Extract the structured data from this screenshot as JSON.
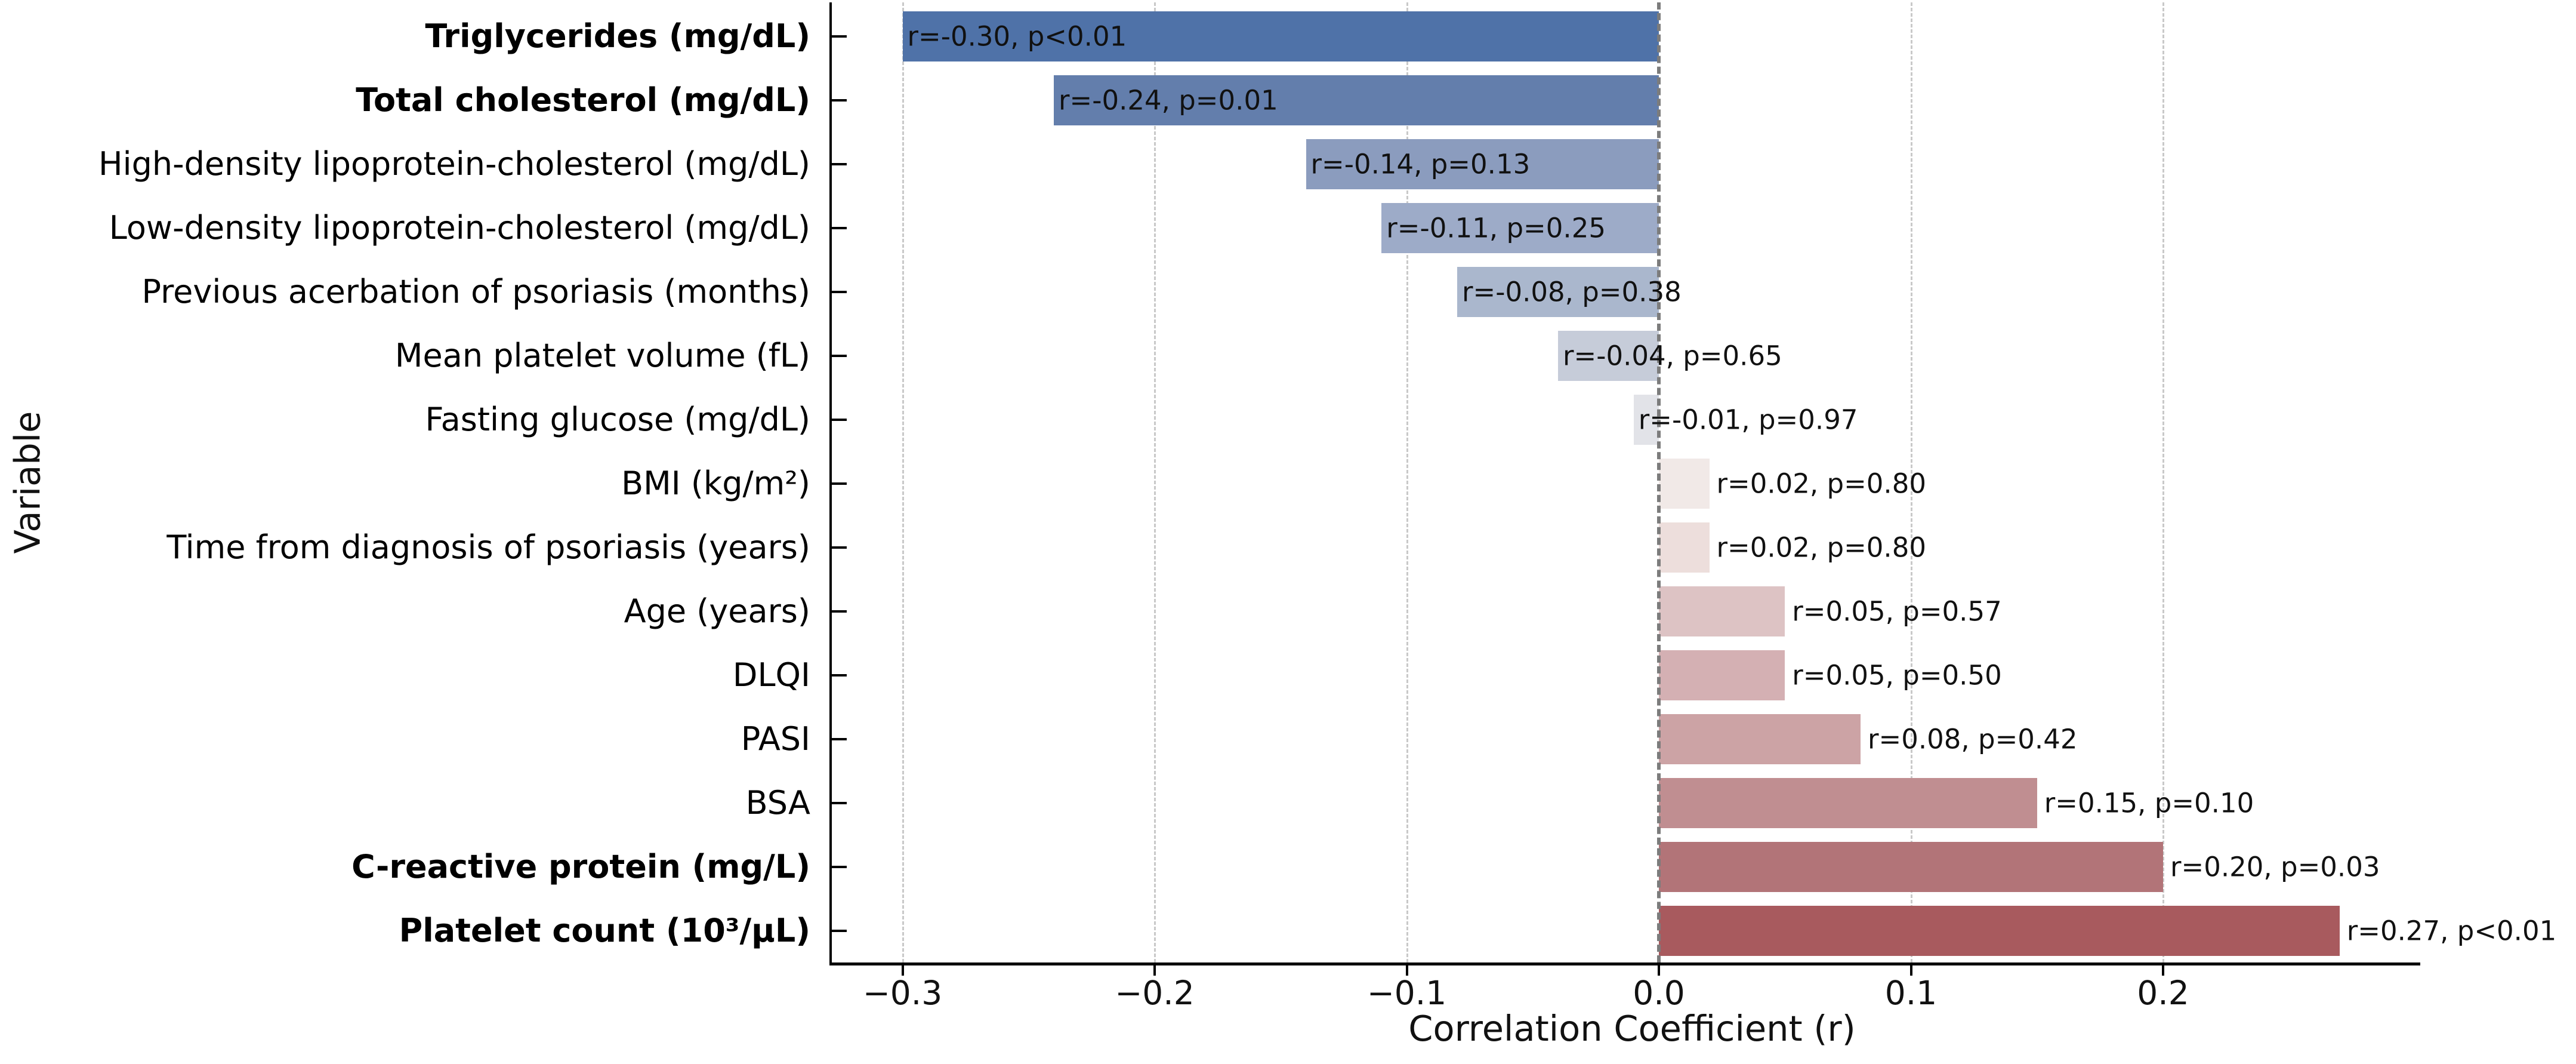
{
  "figure": {
    "xlabel": "Correlation Coefficient (r)",
    "ylabel": "Variable"
  },
  "chart_data": {
    "type": "bar",
    "orientation": "horizontal",
    "title": "",
    "xlabel": "Correlation Coefficient (r)",
    "ylabel": "Variable",
    "xlim": [
      -0.3285,
      0.302
    ],
    "x_ticks": [
      -0.3,
      -0.2,
      -0.1,
      0.0,
      0.1,
      0.2
    ],
    "x_tick_labels": [
      "−0.3",
      "−0.2",
      "−0.1",
      "0.0",
      "0.1",
      "0.2"
    ],
    "grid": "vertical dashed gridlines at x ticks",
    "zero_line": "dashed gray vertical line at r=0",
    "legend": "none",
    "colors": {
      "gridline": "#c9c9c9",
      "zero_line": "#7c7c7c",
      "spine": "#000000",
      "annotation_text": "#111111"
    },
    "rows": [
      {
        "label": "Triglycerides (mg/dL)",
        "bold": true,
        "r": -0.3,
        "p": "<0.01",
        "annotation": "r=-0.30, p<0.01",
        "color": "#4f72a8"
      },
      {
        "label": "Total cholesterol (mg/dL)",
        "bold": true,
        "r": -0.24,
        "p": "=0.01",
        "annotation": "r=-0.24, p=0.01",
        "color": "#637eac"
      },
      {
        "label": "High-density lipoprotein-cholesterol (mg/dL)",
        "bold": false,
        "r": -0.14,
        "p": "=0.13",
        "annotation": "r=-0.14, p=0.13",
        "color": "#8b9cbe"
      },
      {
        "label": "Low-density lipoprotein-cholesterol (mg/dL)",
        "bold": false,
        "r": -0.11,
        "p": "=0.25",
        "annotation": "r=-0.11, p=0.25",
        "color": "#9dabc8"
      },
      {
        "label": "Previous acerbation of psoriasis (months)",
        "bold": false,
        "r": -0.08,
        "p": "=0.38",
        "annotation": "r=-0.08, p=0.38",
        "color": "#aab7cd"
      },
      {
        "label": "Mean platelet volume (fL)",
        "bold": false,
        "r": -0.04,
        "p": "=0.65",
        "annotation": "r=-0.04, p=0.65",
        "color": "#c6ccd9"
      },
      {
        "label": "Fasting glucose (mg/dL)",
        "bold": false,
        "r": -0.01,
        "p": "=0.97",
        "annotation": "r=-0.01, p=0.97",
        "color": "#e2e3e8"
      },
      {
        "label": "BMI (kg/m²)",
        "bold": false,
        "r": 0.02,
        "p": "=0.80",
        "annotation": "r=0.02, p=0.80",
        "color": "#f1e9e7"
      },
      {
        "label": "Time from diagnosis of psoriasis (years)",
        "bold": false,
        "r": 0.02,
        "p": "=0.80",
        "annotation": "r=0.02, p=0.80",
        "color": "#eddedc"
      },
      {
        "label": "Age (years)",
        "bold": false,
        "r": 0.05,
        "p": "=0.57",
        "annotation": "r=0.05, p=0.57",
        "color": "#ddc3c4"
      },
      {
        "label": "DLQI",
        "bold": false,
        "r": 0.05,
        "p": "=0.50",
        "annotation": "r=0.05, p=0.50",
        "color": "#d4b0b3"
      },
      {
        "label": "PASI",
        "bold": false,
        "r": 0.08,
        "p": "=0.42",
        "annotation": "r=0.08, p=0.42",
        "color": "#cca3a5"
      },
      {
        "label": "BSA",
        "bold": false,
        "r": 0.15,
        "p": "=0.10",
        "annotation": "r=0.15, p=0.10",
        "color": "#c08e91"
      },
      {
        "label": "C-reactive protein (mg/L)",
        "bold": true,
        "r": 0.2,
        "p": "=0.03",
        "annotation": "r=0.20, p=0.03",
        "color": "#b27478"
      },
      {
        "label": "Platelet count (10³/μL)",
        "bold": true,
        "r": 0.27,
        "p": "<0.01",
        "annotation": "r=0.27, p<0.01",
        "color": "#a85a5e"
      }
    ]
  }
}
